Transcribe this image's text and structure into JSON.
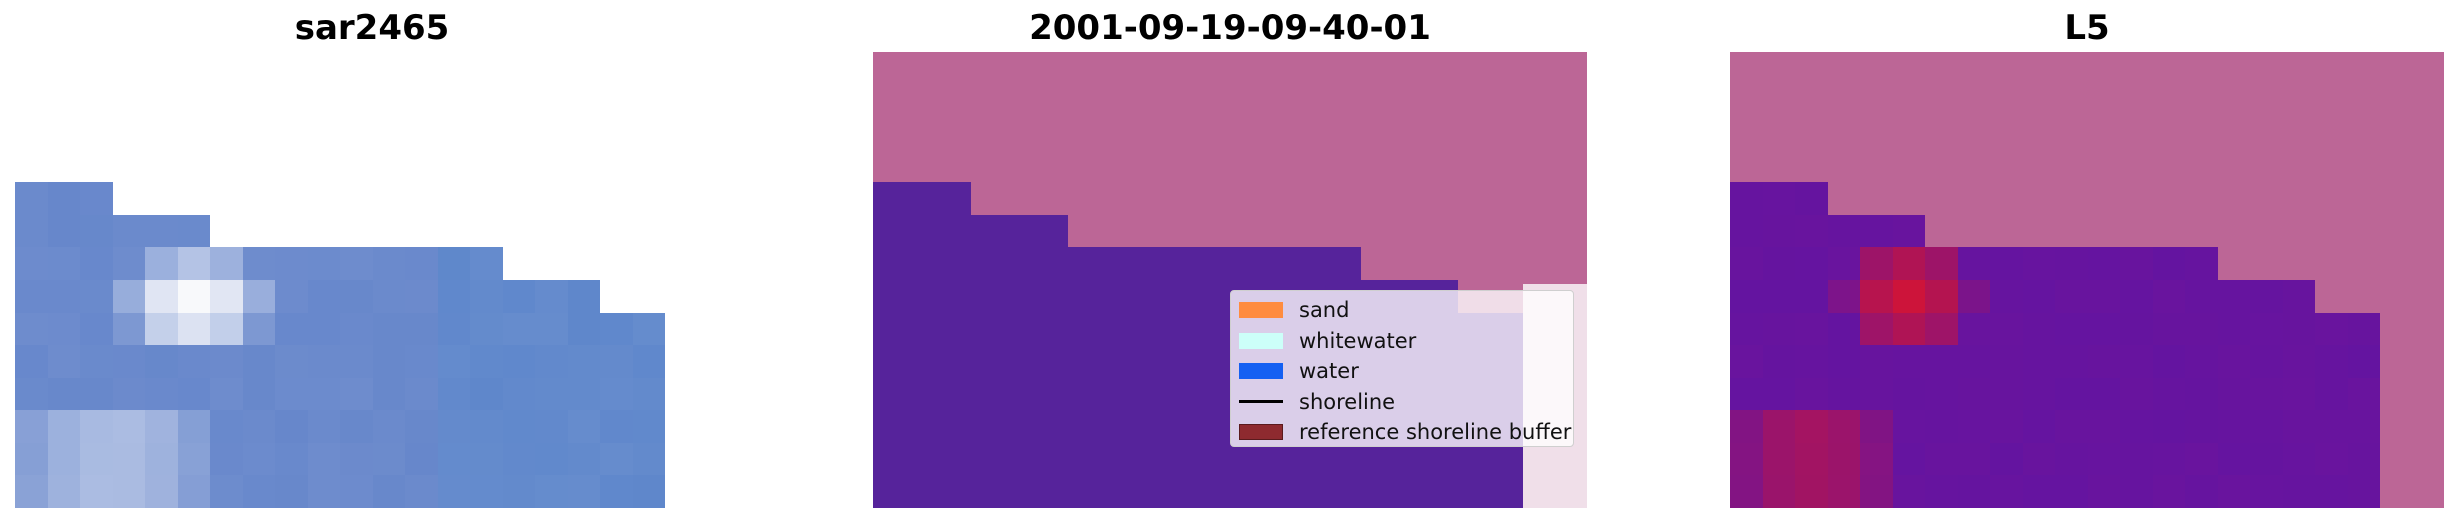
{
  "panels": [
    {
      "title": "sar2465"
    },
    {
      "title": "2001-09-19-09-40-01"
    },
    {
      "title": "L5"
    }
  ],
  "legend": [
    {
      "label": "sand",
      "color": "#ff8c3f",
      "kind": "patch"
    },
    {
      "label": "whitewater",
      "color": "#ccfff9",
      "kind": "patch"
    },
    {
      "label": "water",
      "color": "#1460f2",
      "kind": "patch"
    },
    {
      "label": "shoreline",
      "color": "#000000",
      "kind": "line"
    },
    {
      "label": "reference shoreline buffer",
      "color": "#8e2a2f",
      "kind": "patch"
    }
  ],
  "colors": {
    "background_pink": "#bc6696",
    "class_purple": "#56239b",
    "buffer_band": "#f0dfe9"
  }
}
